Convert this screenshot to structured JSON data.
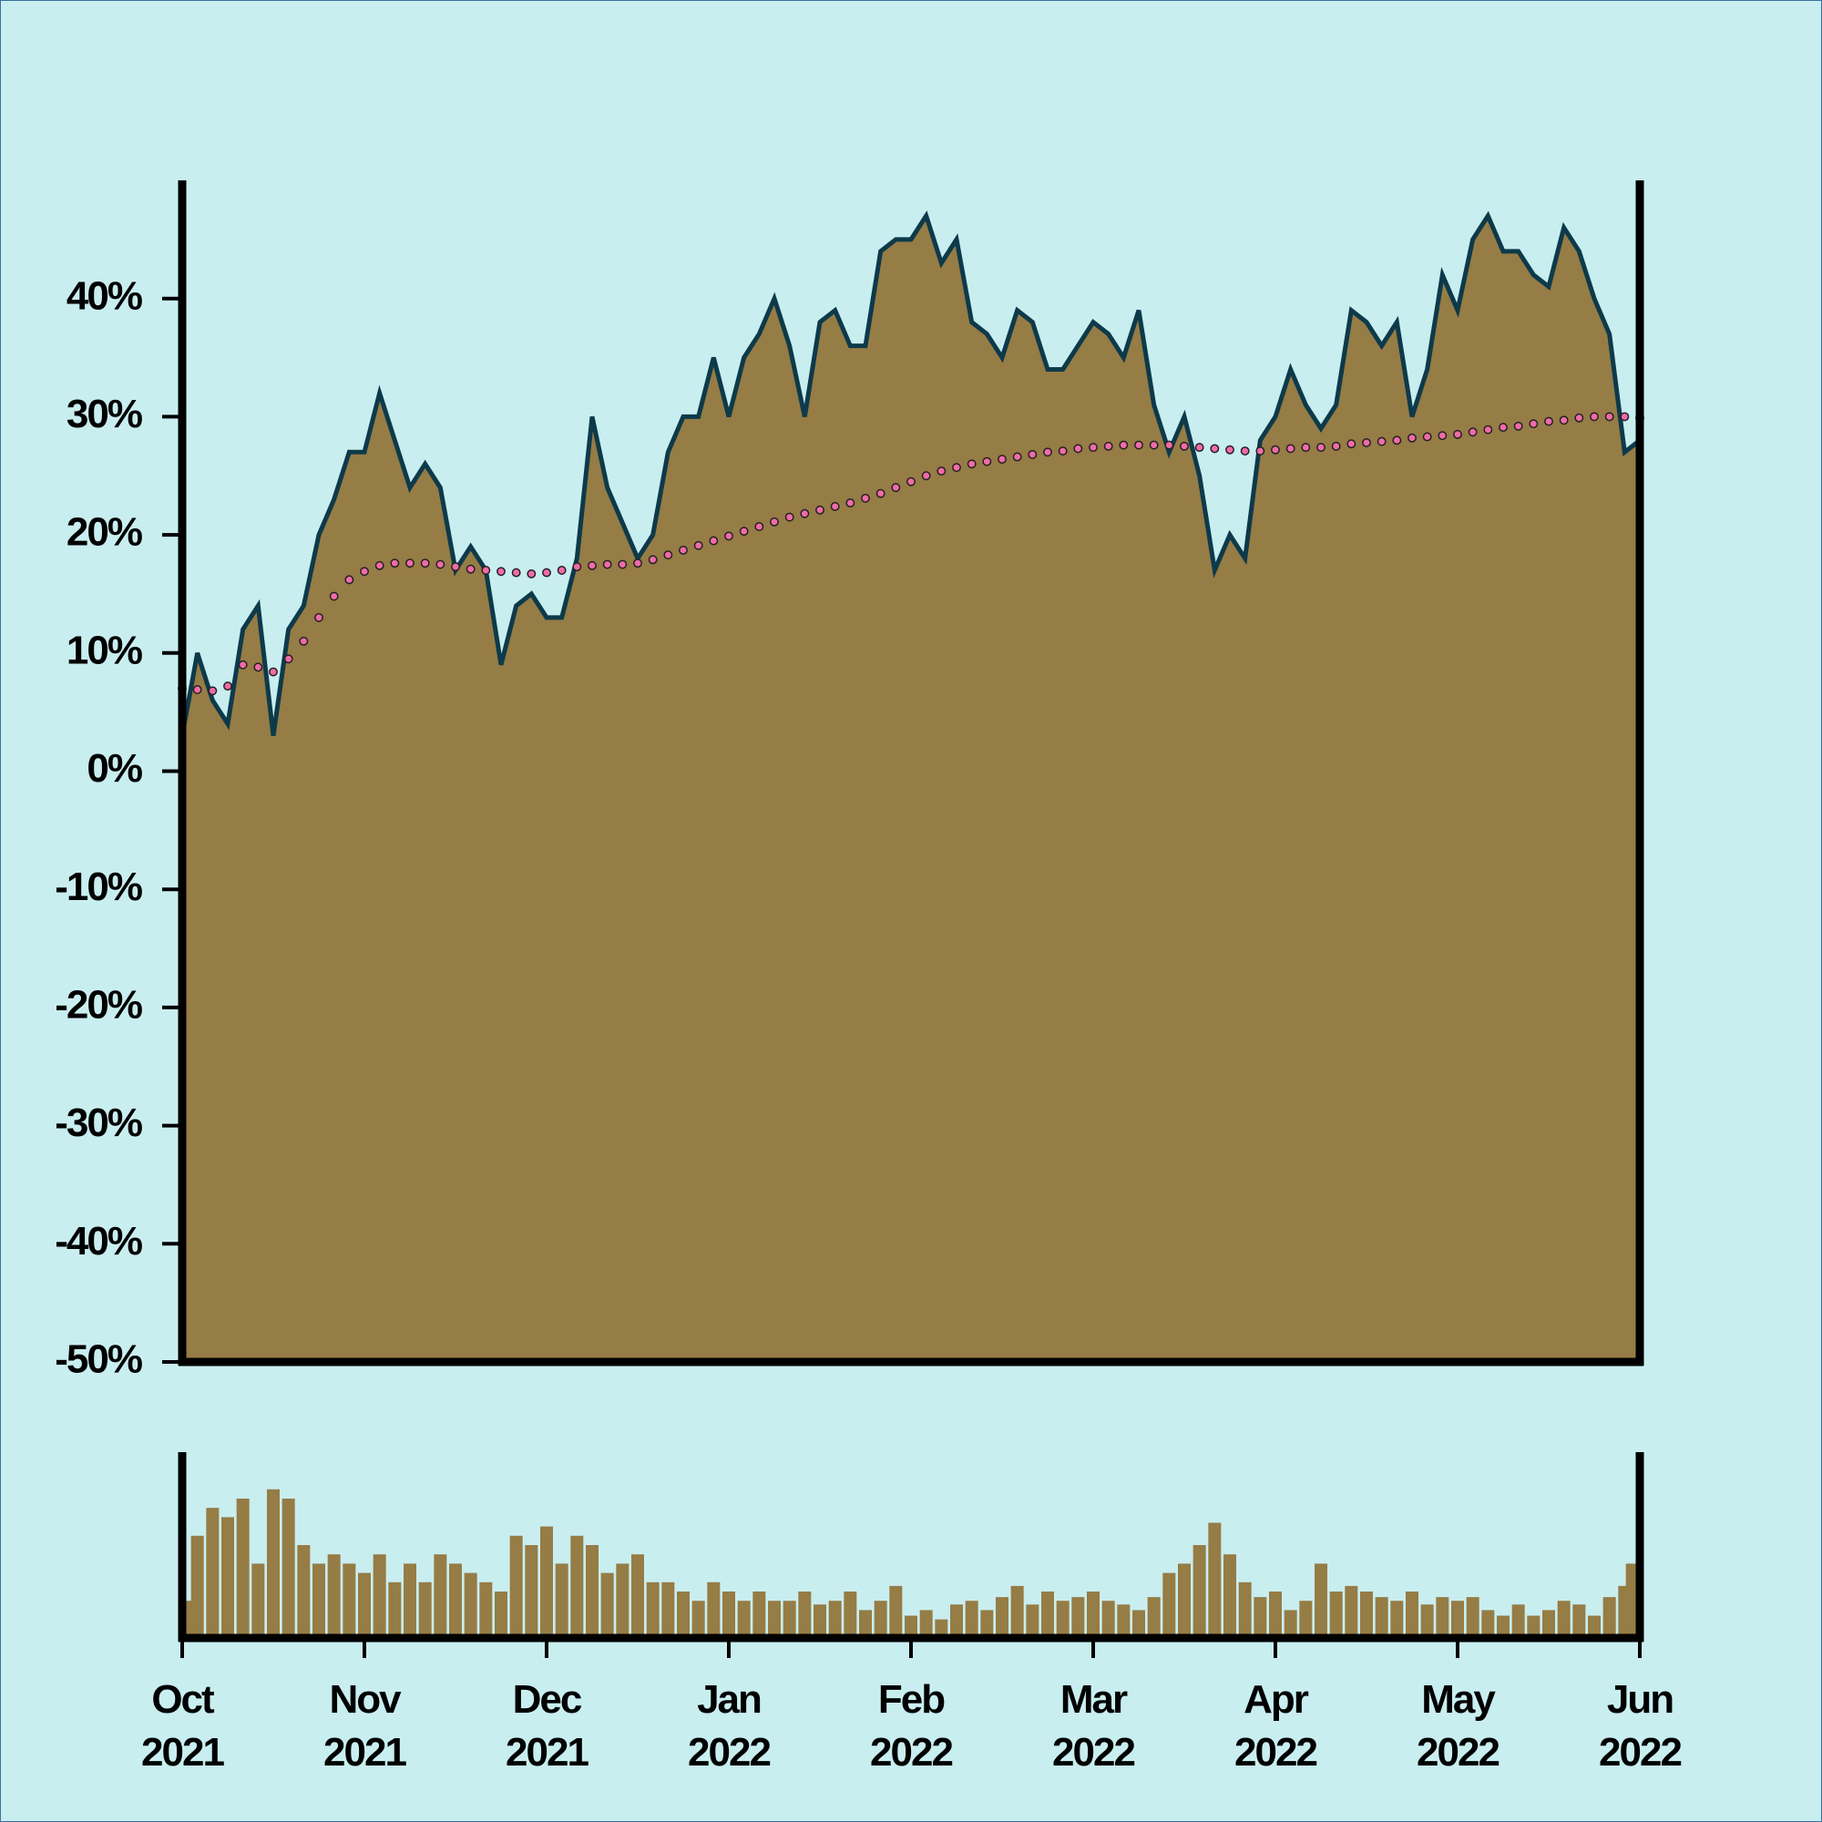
{
  "chart_data": [
    {
      "type": "area",
      "series": [
        {
          "color": "#0d3a4a",
          "fill": "#967c45",
          "values": [
            3,
            10,
            6,
            4,
            12,
            14,
            3,
            12,
            14,
            20,
            23,
            27,
            27,
            32,
            28,
            24,
            26,
            24,
            17,
            19,
            17,
            9,
            14,
            15,
            13,
            13,
            18,
            30,
            24,
            21,
            18,
            20,
            27,
            30,
            30,
            35,
            30,
            35,
            37,
            40,
            36,
            30,
            38,
            39,
            36,
            36,
            44,
            45,
            45,
            47,
            43,
            45,
            38,
            37,
            35,
            39,
            38,
            34,
            34,
            36,
            38,
            37,
            35,
            39,
            31,
            27,
            30,
            25,
            17,
            20,
            18,
            28,
            30,
            34,
            31,
            29,
            31,
            39,
            38,
            36,
            38,
            30,
            34,
            42,
            39,
            45,
            47,
            44,
            44,
            42,
            41,
            46,
            44,
            40,
            37,
            27,
            28
          ]
        },
        {
          "color": "#f06ba8",
          "line_style": "dotted",
          "values": [
            7,
            6.9,
            6.8,
            7.2,
            9,
            8.8,
            8.4,
            9.5,
            11,
            13,
            14.8,
            16.2,
            16.9,
            17.4,
            17.6,
            17.6,
            17.6,
            17.5,
            17.3,
            17.1,
            17,
            16.9,
            16.8,
            16.7,
            16.8,
            17,
            17.3,
            17.4,
            17.5,
            17.5,
            17.6,
            17.9,
            18.3,
            18.7,
            19.1,
            19.5,
            19.9,
            20.3,
            20.7,
            21.1,
            21.5,
            21.8,
            22.1,
            22.4,
            22.7,
            23.1,
            23.5,
            24,
            24.5,
            25,
            25.4,
            25.7,
            26,
            26.2,
            26.4,
            26.6,
            26.8,
            27,
            27.1,
            27.3,
            27.4,
            27.5,
            27.6,
            27.6,
            27.6,
            27.6,
            27.5,
            27.4,
            27.3,
            27.2,
            27.1,
            27.1,
            27.2,
            27.3,
            27.4,
            27.4,
            27.5,
            27.7,
            27.8,
            27.9,
            28,
            28.2,
            28.3,
            28.4,
            28.5,
            28.7,
            28.9,
            29.1,
            29.2,
            29.4,
            29.6,
            29.7,
            29.9,
            30,
            30,
            30,
            29.9
          ]
        }
      ],
      "ylim": [
        -50,
        50
      ],
      "yticks": [
        {
          "value": -50,
          "label": "-50%"
        },
        {
          "value": -40,
          "label": "-40%"
        },
        {
          "value": -30,
          "label": "-30%"
        },
        {
          "value": -20,
          "label": "-20%"
        },
        {
          "value": -10,
          "label": "-10%"
        },
        {
          "value": 0,
          "label": "0%"
        },
        {
          "value": 10,
          "label": "10%"
        },
        {
          "value": 20,
          "label": "20%"
        },
        {
          "value": 30,
          "label": "30%"
        },
        {
          "value": 40,
          "label": "40%"
        }
      ]
    },
    {
      "type": "bar",
      "color": "#967c45",
      "categories": [
        "Oct\n2021",
        null,
        null,
        null,
        null,
        null,
        null,
        null,
        null,
        null,
        null,
        null,
        "Nov\n2021",
        null,
        null,
        null,
        null,
        null,
        null,
        null,
        null,
        null,
        null,
        null,
        "Dec\n2021",
        null,
        null,
        null,
        null,
        null,
        null,
        null,
        null,
        null,
        null,
        null,
        "Jan\n2022",
        null,
        null,
        null,
        null,
        null,
        null,
        null,
        null,
        null,
        null,
        null,
        "Feb\n2022",
        null,
        null,
        null,
        null,
        null,
        null,
        null,
        null,
        null,
        null,
        null,
        "Mar\n2022",
        null,
        null,
        null,
        null,
        null,
        null,
        null,
        null,
        null,
        null,
        null,
        "Apr\n2022",
        null,
        null,
        null,
        null,
        null,
        null,
        null,
        null,
        null,
        null,
        null,
        "May\n2022",
        null,
        null,
        null,
        null,
        null,
        null,
        null,
        null,
        null,
        null,
        null,
        "Jun\n2022"
      ],
      "values": [
        20,
        55,
        70,
        65,
        75,
        40,
        80,
        75,
        50,
        40,
        45,
        40,
        35,
        45,
        30,
        40,
        30,
        45,
        40,
        35,
        30,
        25,
        55,
        50,
        60,
        40,
        55,
        50,
        35,
        40,
        45,
        30,
        30,
        25,
        20,
        30,
        25,
        20,
        25,
        20,
        20,
        25,
        18,
        20,
        25,
        15,
        20,
        28,
        12,
        15,
        10,
        18,
        20,
        15,
        22,
        28,
        18,
        25,
        20,
        22,
        25,
        20,
        18,
        15,
        22,
        35,
        40,
        50,
        62,
        45,
        30,
        22,
        25,
        15,
        20,
        40,
        25,
        28,
        25,
        22,
        20,
        25,
        18,
        22,
        20,
        22,
        15,
        12,
        18,
        12,
        15,
        20,
        18,
        12,
        22,
        28,
        40
      ],
      "ylim": [
        0,
        100
      ]
    }
  ]
}
